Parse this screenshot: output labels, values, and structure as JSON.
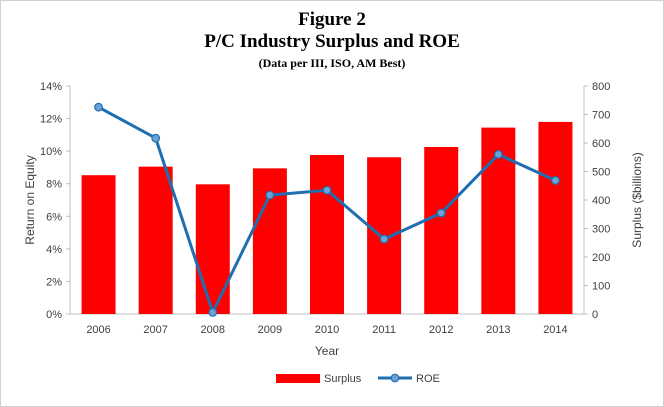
{
  "chart_data": {
    "type": "bar+line",
    "title": "Figure 2",
    "subtitle": "P/C Industry Surplus and ROE",
    "note": "(Data per III, ISO, AM Best)",
    "xlabel": "Year",
    "ylabel_left": "Return on Equity",
    "ylabel_right": "Surplus ($billions)",
    "categories": [
      "2006",
      "2007",
      "2008",
      "2009",
      "2010",
      "2011",
      "2012",
      "2013",
      "2014"
    ],
    "left_axis": {
      "min": 0,
      "max": 14,
      "step": 2,
      "ticks": [
        "0%",
        "2%",
        "4%",
        "6%",
        "8%",
        "10%",
        "12%",
        "14%"
      ]
    },
    "right_axis": {
      "min": 0,
      "max": 800,
      "step": 100,
      "ticks": [
        "0",
        "100",
        "200",
        "300",
        "400",
        "500",
        "600",
        "700",
        "800"
      ]
    },
    "series": [
      {
        "name": "Surplus",
        "type": "bar",
        "axis": "right",
        "color": "#ff0000",
        "values": [
          487,
          517,
          455,
          511,
          558,
          550,
          586,
          654,
          674
        ]
      },
      {
        "name": "ROE",
        "type": "line",
        "axis": "left",
        "color": "#1f6fb0",
        "marker_color": "#6aa2d6",
        "values": [
          12.7,
          10.8,
          0.1,
          7.3,
          7.6,
          4.6,
          6.2,
          9.8,
          8.2
        ]
      }
    ],
    "grid": false,
    "legend": "bottom"
  }
}
